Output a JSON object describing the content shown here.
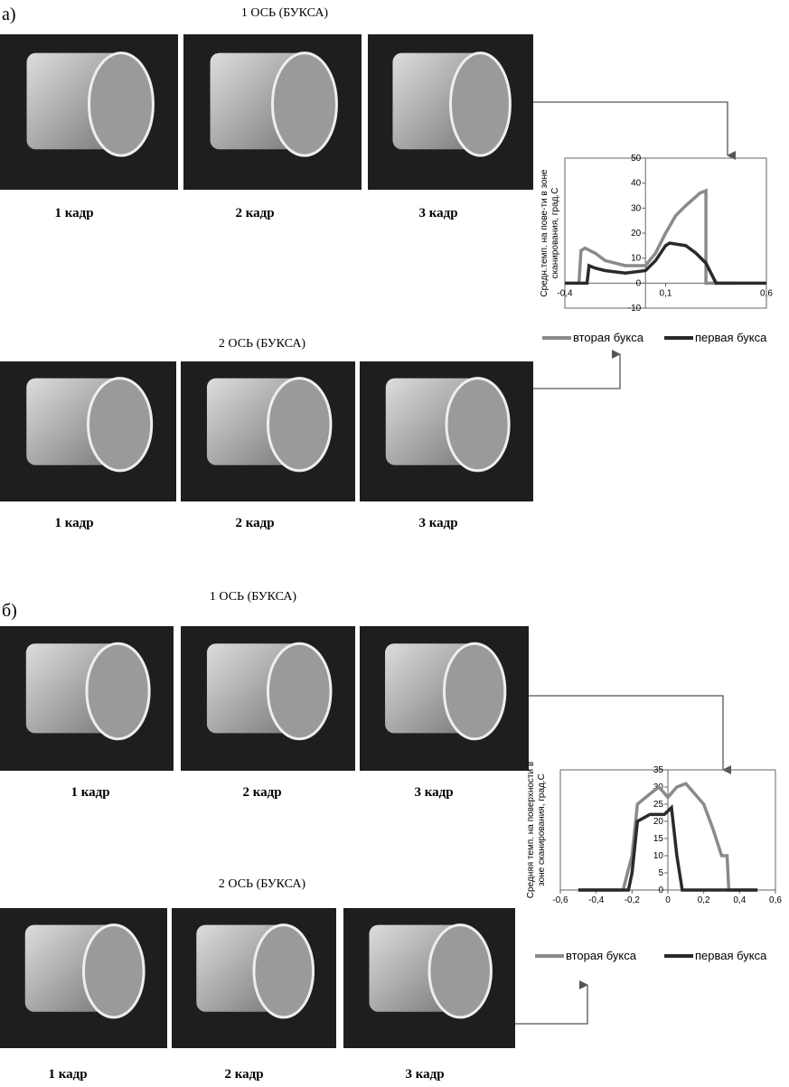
{
  "panels": [
    {
      "label": "а)",
      "rows": [
        {
          "title": "1 ОСЬ (БУКСА)",
          "captions": [
            "1 кадр",
            "2 кадр",
            "3 кадр"
          ]
        },
        {
          "title": "2 ОСЬ (БУКСА)",
          "captions": [
            "1 кадр",
            "2 кадр",
            "3 кадр"
          ]
        }
      ]
    },
    {
      "label": "б)",
      "rows": [
        {
          "title": "1 ОСЬ (БУКСА)",
          "captions": [
            "1 кадр",
            "2 кадр",
            "3 кадр"
          ]
        },
        {
          "title": "2 ОСЬ (БУКСА)",
          "captions": [
            "1 кадр",
            "2 кадр",
            "3 кадр"
          ]
        }
      ]
    }
  ],
  "chart_data": [
    {
      "type": "line",
      "y_label": [
        "Средн.темп. на пове-ти в зоне",
        "сканирования, град.С"
      ],
      "xlim": [
        -0.4,
        0.6
      ],
      "ylim": [
        -10,
        50
      ],
      "xticks": [
        {
          "value": -0.4,
          "label": "-0,4"
        },
        {
          "value": 0.1,
          "label": "0,1"
        },
        {
          "value": 0.6,
          "label": "0,6"
        }
      ],
      "yticks": [
        -10,
        0,
        10,
        20,
        30,
        40,
        50
      ],
      "series": [
        {
          "name": "вторая букса",
          "color": "#8a8a8a",
          "x": [
            -0.33,
            -0.32,
            -0.3,
            -0.25,
            -0.2,
            -0.1,
            0,
            0.05,
            0.1,
            0.15,
            0.2,
            0.27,
            0.3,
            0.3,
            0.45
          ],
          "values": [
            0,
            13,
            14,
            12,
            9,
            7,
            7,
            12,
            20,
            27,
            31,
            36,
            37,
            0,
            0
          ]
        },
        {
          "name": "первая букса",
          "color": "#2a2a2a",
          "x": [
            -0.4,
            -0.29,
            -0.28,
            -0.25,
            -0.2,
            -0.1,
            0,
            0.05,
            0.1,
            0.12,
            0.2,
            0.25,
            0.3,
            0.35,
            0.6
          ],
          "values": [
            0,
            0,
            7,
            6,
            5,
            4,
            5,
            9,
            15,
            16,
            15,
            12,
            8,
            0,
            0
          ]
        }
      ]
    },
    {
      "type": "line",
      "y_label": [
        "Средняя темп. на поверхности в",
        "зоне сканирования, град.С"
      ],
      "xlim": [
        -0.6,
        0.6
      ],
      "ylim": [
        0,
        35
      ],
      "xticks": [
        {
          "value": -0.6,
          "label": "-0,6"
        },
        {
          "value": -0.4,
          "label": "-0,4"
        },
        {
          "value": -0.2,
          "label": "-0,2"
        },
        0,
        {
          "value": 0.2,
          "label": "0,2"
        },
        {
          "value": 0.4,
          "label": "0,4"
        },
        {
          "value": 0.6,
          "label": "0,6"
        }
      ],
      "yticks": [
        0,
        5,
        10,
        15,
        20,
        25,
        30,
        35
      ],
      "series": [
        {
          "name": "вторая букса",
          "color": "#8a8a8a",
          "x": [
            -0.5,
            -0.25,
            -0.2,
            -0.17,
            -0.1,
            -0.05,
            0,
            0.05,
            0.1,
            0.15,
            0.2,
            0.25,
            0.3,
            0.33,
            0.34,
            0.5
          ],
          "values": [
            0,
            0,
            10,
            25,
            28,
            30,
            27,
            30,
            31,
            28,
            25,
            18,
            10,
            10,
            0,
            0
          ]
        },
        {
          "name": "первая букса",
          "color": "#2a2a2a",
          "x": [
            -0.5,
            -0.22,
            -0.2,
            -0.17,
            -0.1,
            -0.02,
            0.02,
            0.05,
            0.08,
            0.5
          ],
          "values": [
            0,
            0,
            5,
            20,
            22,
            22,
            24,
            10,
            0,
            0
          ]
        }
      ]
    }
  ]
}
